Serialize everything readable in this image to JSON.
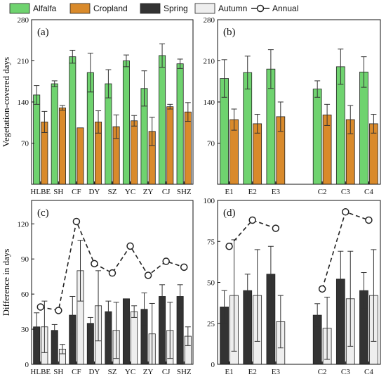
{
  "legend": [
    {
      "label": "Alfalfa",
      "color": "#6fd36f",
      "kind": "bar"
    },
    {
      "label": "Cropland",
      "color": "#d98a2b",
      "kind": "bar"
    },
    {
      "label": "Spring",
      "color": "#333333",
      "kind": "bar"
    },
    {
      "label": "Autumn",
      "color": "#eeeeee",
      "kind": "bar"
    },
    {
      "label": "Annual",
      "color": "#222222",
      "kind": "line"
    }
  ],
  "chart_data": [
    {
      "panel": "(a)",
      "type": "bar",
      "ylabel": "Vegetation-covered days",
      "ylim": [
        0,
        280
      ],
      "yticks": [
        70,
        140,
        210,
        280
      ],
      "categories": [
        "HLBE",
        "SH",
        "CF",
        "DY",
        "SZ",
        "YC",
        "ZY",
        "CJ",
        "SHZ"
      ],
      "series": [
        {
          "name": "Alfalfa",
          "values": [
            152,
            171,
            217,
            190,
            171,
            210,
            163,
            219,
            205
          ],
          "errors": [
            16,
            5,
            11,
            33,
            24,
            10,
            30,
            20,
            8
          ]
        },
        {
          "name": "Cropland",
          "values": [
            106,
            130,
            96,
            106,
            98,
            108,
            90,
            132,
            123
          ],
          "errors": [
            18,
            4,
            0,
            19,
            20,
            9,
            24,
            4,
            16
          ]
        }
      ]
    },
    {
      "panel": "(b)",
      "type": "bar",
      "ylabel": "",
      "ylim": [
        0,
        280
      ],
      "yticks": [
        70,
        140,
        210,
        280
      ],
      "categories": [
        "E1",
        "E2",
        "E3",
        "",
        "C2",
        "C3",
        "C4"
      ],
      "series": [
        {
          "name": "Alfalfa",
          "values": [
            180,
            190,
            196,
            null,
            162,
            200,
            191
          ],
          "errors": [
            32,
            28,
            33,
            null,
            14,
            30,
            26
          ]
        },
        {
          "name": "Cropland",
          "values": [
            110,
            103,
            115,
            null,
            118,
            110,
            103
          ],
          "errors": [
            18,
            16,
            25,
            null,
            18,
            24,
            16
          ]
        }
      ]
    },
    {
      "panel": "(c)",
      "type": "bar",
      "ylabel": "Difference in days",
      "ylim": [
        0,
        140
      ],
      "yticks": [
        0,
        30,
        60,
        90,
        120
      ],
      "categories": [
        "HLBE",
        "SH",
        "CF",
        "DY",
        "SZ",
        "YC",
        "ZY",
        "CJ",
        "SHZ"
      ],
      "series": [
        {
          "name": "Spring",
          "values": [
            32,
            29,
            42,
            35,
            45,
            56,
            47,
            58,
            58
          ],
          "errors": [
            12,
            5,
            16,
            5,
            9,
            0,
            14,
            10,
            10
          ]
        },
        {
          "name": "Autumn",
          "values": [
            32,
            13,
            80,
            50,
            29,
            45,
            26,
            29,
            24
          ],
          "errors": [
            22,
            4,
            26,
            30,
            24,
            5,
            26,
            24,
            8
          ]
        },
        {
          "name": "Annual",
          "kind": "line",
          "values": [
            49,
            46,
            122,
            86,
            78,
            101,
            76,
            88,
            83
          ]
        }
      ]
    },
    {
      "panel": "(d)",
      "type": "bar",
      "ylabel": "",
      "ylim": [
        0,
        100
      ],
      "yticks": [
        0,
        25,
        50,
        75,
        100
      ],
      "categories": [
        "E1",
        "E2",
        "E3",
        "",
        "C2",
        "C3",
        "C4"
      ],
      "series": [
        {
          "name": "Spring",
          "values": [
            35,
            45,
            55,
            null,
            30,
            52,
            45
          ],
          "errors": [
            10,
            10,
            17,
            null,
            7,
            17,
            11
          ]
        },
        {
          "name": "Autumn",
          "values": [
            42,
            42,
            26,
            null,
            22,
            40,
            42
          ],
          "errors": [
            34,
            28,
            16,
            null,
            19,
            29,
            28
          ]
        },
        {
          "name": "Annual",
          "kind": "line",
          "values": [
            72,
            88,
            83,
            null,
            46,
            93,
            88
          ]
        }
      ]
    }
  ]
}
